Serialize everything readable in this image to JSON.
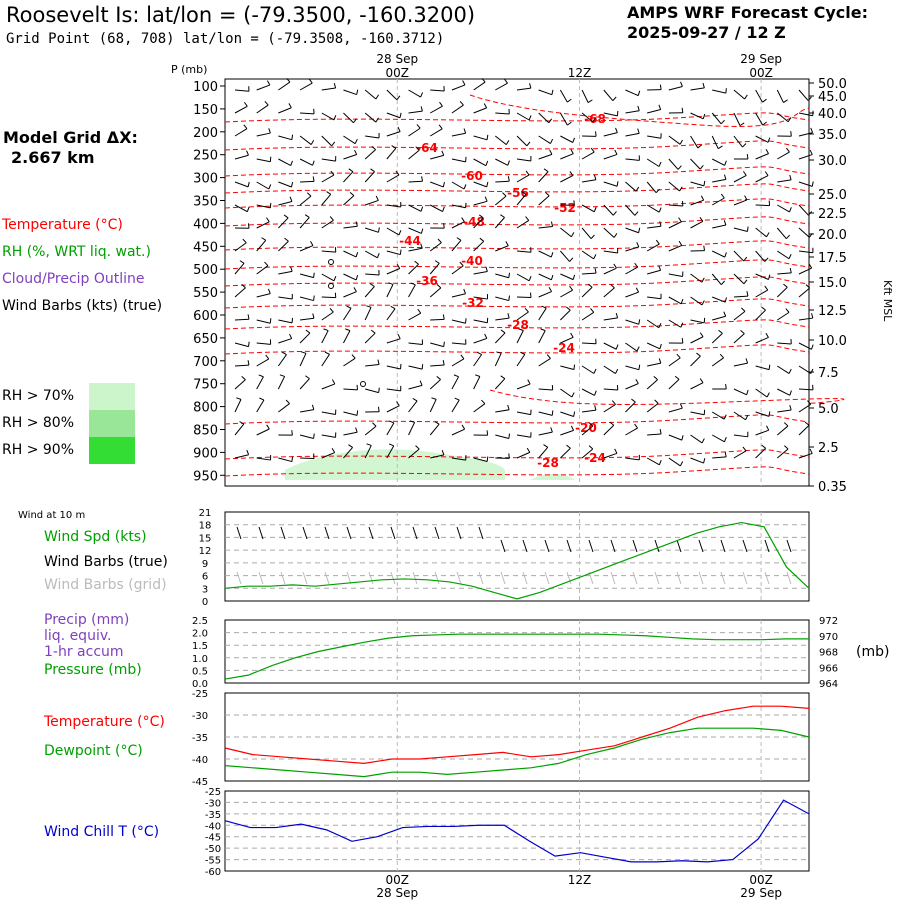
{
  "header": {
    "title": "Roosevelt Is:  lat/lon = (-79.3500, -160.3200)",
    "subtitle": "Grid Point (68, 708) lat/lon = (-79.3508, -160.3712)",
    "cycle_line1": "AMPS WRF Forecast Cycle:",
    "cycle_line2": "2025-09-27 / 12  Z"
  },
  "left_panel": {
    "model_grid_label": "Model Grid ΔX:",
    "model_grid_value": "2.667 km",
    "temperature": "Temperature (°C)",
    "rh": "RH (%, WRT liq. wat.)",
    "cloud": "Cloud/Precip Outline",
    "wind_barbs": "Wind Barbs (kts) (true)",
    "rh70": "RH > 70%",
    "rh80": "RH > 80%",
    "rh90": "RH > 90%"
  },
  "colors": {
    "temperature": "#ff0000",
    "rh": "#00a000",
    "cloud": "#7f3fbf",
    "wind": "#000000",
    "rh70": "#ccf5cc",
    "rh80": "#99e699",
    "rh90": "#33dd33",
    "grid_barbs": "#bbbbbb",
    "wind_chill": "#0000cc"
  },
  "time_axis": {
    "top_date1": "28 Sep",
    "top_date2": "29 Sep",
    "ticks": [
      "00Z",
      "12Z",
      "00Z"
    ],
    "bottom_date1": "28 Sep",
    "bottom_date2": "29 Sep"
  },
  "chart_data": [
    {
      "type": "contour",
      "name": "sounding-cross-section",
      "ylabel_left": "P (mb)",
      "ylabel_right": "Kft MSL",
      "pressure_levels": [
        "100",
        "150",
        "200",
        "250",
        "300",
        "350",
        "400",
        "450",
        "500",
        "550",
        "600",
        "650",
        "700",
        "750",
        "800",
        "850",
        "900",
        "950"
      ],
      "height_labels": [
        "50.0",
        "45.0",
        "40.0",
        "35.0",
        "30.0",
        "25.0",
        "22.5",
        "20.0",
        "17.5",
        "15.0",
        "12.5",
        "10.0",
        "7.5",
        "5.0",
        "2.5",
        "0.35"
      ],
      "temperature_labels": [
        "-68",
        "-64",
        "-60",
        "-56",
        "-52",
        "-48",
        "-44",
        "-40",
        "-36",
        "-32",
        "-28",
        "-24",
        "-20",
        "-28",
        "-24"
      ]
    },
    {
      "type": "line",
      "name": "wind-at-10m",
      "title": "Wind at 10 m",
      "series_label": "Wind Spd (kts)",
      "barbs_true_label": "Wind Barbs (true)",
      "barbs_grid_label": "Wind Barbs (grid)",
      "ylim": [
        0,
        21
      ],
      "yticks": [
        "21",
        "18",
        "15",
        "12",
        "9",
        "6",
        "3",
        "0"
      ],
      "values": [
        3.0,
        3.5,
        3.5,
        3.8,
        3.5,
        4.0,
        4.5,
        5.0,
        5.2,
        5.0,
        4.5,
        3.5,
        2.0,
        0.5,
        2.0,
        4.0,
        6.0,
        8.0,
        10.0,
        12.0,
        14.0,
        16.0,
        17.5,
        18.5,
        17.5,
        8.0,
        3.0
      ]
    },
    {
      "type": "line",
      "name": "precip-pressure",
      "precip_label_1": "Precip (mm)",
      "precip_label_2": "liq. equiv.",
      "precip_label_3": "1-hr accum",
      "pressure_label": "Pressure (mb)",
      "unit_label": "(mb)",
      "left_ticks": [
        "2.5",
        "2.0",
        "1.5",
        "1.0",
        "0.5",
        "0.0"
      ],
      "right_ticks": [
        "972",
        "970",
        "968",
        "966",
        "964"
      ],
      "precip_ylim": [
        0,
        2.5
      ],
      "pressure_ylim": [
        964,
        972
      ],
      "pressure_values": [
        964.5,
        965.0,
        966.2,
        967.2,
        968.0,
        968.6,
        969.2,
        969.7,
        970.0,
        970.1,
        970.2,
        970.2,
        970.2,
        970.2,
        970.2,
        970.2,
        970.2,
        970.1,
        970.0,
        969.8,
        969.6,
        969.5,
        969.5,
        969.5,
        969.6,
        969.6
      ]
    },
    {
      "type": "line",
      "name": "temperature-dewpoint",
      "temp_label": "Temperature (°C)",
      "dew_label": "Dewpoint (°C)",
      "yticks": [
        "-25",
        "-30",
        "-35",
        "-40",
        "-45"
      ],
      "ylim": [
        -45,
        -25
      ],
      "temperature": [
        -37.5,
        -39.0,
        -39.5,
        -40.0,
        -40.5,
        -41.0,
        -40.0,
        -40.0,
        -39.5,
        -39.0,
        -38.5,
        -39.5,
        -39.0,
        -38.0,
        -37.0,
        -35.0,
        -33.0,
        -30.5,
        -29.0,
        -28.0,
        -28.0,
        -28.5
      ],
      "dewpoint": [
        -41.5,
        -42.0,
        -42.5,
        -43.0,
        -43.5,
        -44.0,
        -43.0,
        -43.0,
        -43.5,
        -43.0,
        -42.5,
        -42.0,
        -41.0,
        -39.0,
        -37.5,
        -35.5,
        -34.0,
        -33.0,
        -33.0,
        -33.0,
        -33.5,
        -35.0
      ]
    },
    {
      "type": "line",
      "name": "wind-chill",
      "label": "Wind Chill T (°C)",
      "yticks": [
        "-25",
        "-30",
        "-35",
        "-40",
        "-45",
        "-50",
        "-55",
        "-60"
      ],
      "ylim": [
        -60,
        -25
      ],
      "values": [
        -38.0,
        -41.0,
        -41.0,
        -39.5,
        -42.0,
        -47.0,
        -45.0,
        -41.0,
        -40.5,
        -40.5,
        -40.0,
        -40.0,
        -47.0,
        -53.5,
        -52.0,
        -54.0,
        -56.0,
        -56.0,
        -55.5,
        -56.0,
        -55.0,
        -46.0,
        -29.0,
        -35.0
      ]
    }
  ]
}
